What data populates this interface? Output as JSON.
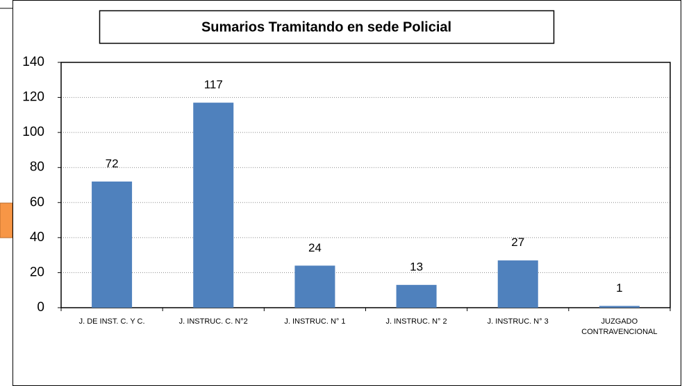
{
  "chart_data": {
    "type": "bar",
    "title": "Sumarios Tramitando en sede Policial",
    "categories": [
      "J. DE INST. C. Y C.",
      "J.  INSTRUC. C. N°2",
      "J.  INSTRUC. N° 1",
      "J.  INSTRUC. N° 2",
      "J.  INSTRUC. N° 3",
      "JUZGADO CONTRAVENCIONAL"
    ],
    "values": [
      72,
      117,
      24,
      13,
      27,
      1
    ],
    "color": "#4f81bd",
    "ylim": [
      0,
      140
    ],
    "yticks": [
      0,
      20,
      40,
      60,
      80,
      100,
      120,
      140
    ],
    "grid": true
  }
}
